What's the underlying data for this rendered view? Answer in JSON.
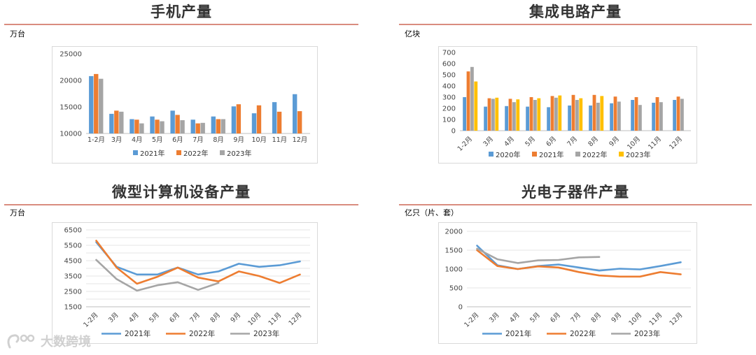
{
  "colors": {
    "blue": "#5b9bd5",
    "orange": "#ed7d31",
    "gray": "#a5a5a5",
    "yellow": "#ffc000",
    "title_rule": "#d98c7f"
  },
  "watermark": {
    "text": "大数跨境",
    "icon": "logo-mark-icon"
  },
  "panels": [
    {
      "title": "手机产量",
      "unit": "万台",
      "chart_data": {
        "type": "bar",
        "title": "手机产量",
        "ylabel": "万台",
        "ylim": [
          10000,
          25000
        ],
        "yticks": [
          10000,
          15000,
          20000,
          25000
        ],
        "categories": [
          "1-2月",
          "3月",
          "4月",
          "5月",
          "6月",
          "7月",
          "8月",
          "9月",
          "10月",
          "11月",
          "12月"
        ],
        "series": [
          {
            "name": "2021年",
            "color": "#5b9bd5",
            "values": [
              20800,
              13700,
              12700,
              13200,
              14300,
              12600,
              13200,
              15100,
              13800,
              15900,
              17400
            ]
          },
          {
            "name": "2022年",
            "color": "#ed7d31",
            "values": [
              21200,
              14300,
              12600,
              12600,
              13500,
              11900,
              12700,
              15500,
              15300,
              14100,
              14200
            ]
          },
          {
            "name": "2023年",
            "color": "#a5a5a5",
            "values": [
              20300,
              14100,
              11900,
              12300,
              12500,
              12000,
              12700,
              null,
              null,
              null,
              null
            ]
          }
        ],
        "legend": "bottom",
        "grid": false
      }
    },
    {
      "title": "集成电路产量",
      "unit": "亿块",
      "chart_data": {
        "type": "bar",
        "title": "集成电路产量",
        "ylabel": "亿块",
        "ylim": [
          0,
          700
        ],
        "yticks": [
          0,
          100,
          200,
          300,
          400,
          500,
          600,
          700
        ],
        "categories": [
          "1-2月",
          "3月",
          "4月",
          "5月",
          "6月",
          "7月",
          "8月",
          "9月",
          "10月",
          "11月",
          "12月"
        ],
        "series": [
          {
            "name": "2020年",
            "color": "#5b9bd5",
            "values": [
              300,
              215,
              220,
              215,
              210,
              225,
              225,
              245,
              275,
              250,
              275
            ]
          },
          {
            "name": "2021年",
            "color": "#ed7d31",
            "values": [
              530,
              290,
              285,
              300,
              310,
              320,
              320,
              305,
              300,
              300,
              305
            ]
          },
          {
            "name": "2022年",
            "color": "#a5a5a5",
            "values": [
              570,
              285,
              255,
              275,
              295,
              275,
              250,
              260,
              230,
              255,
              285
            ]
          },
          {
            "name": "2023年",
            "color": "#ffc000",
            "values": [
              440,
              295,
              280,
              290,
              315,
              290,
              310,
              null,
              null,
              null,
              null
            ]
          }
        ],
        "legend": "bottom",
        "grid": false
      }
    },
    {
      "title": "微型计算机设备产量",
      "unit": "万台",
      "chart_data": {
        "type": "line",
        "title": "微型计算机设备产量",
        "ylabel": "万台",
        "ylim": [
          1500,
          6500
        ],
        "yticks": [
          1500,
          2500,
          3500,
          4500,
          5500,
          6500
        ],
        "ytick_labels": [
          "1500",
          "2500",
          "3500",
          "4500",
          "5500",
          "6500"
        ],
        "ymid_ticks": [
          2000,
          3000,
          4000,
          5000,
          6000
        ],
        "categories": [
          "1-2月",
          "3月",
          "4月",
          "5月",
          "6月",
          "7月",
          "8月",
          "9月",
          "10月",
          "11月",
          "12月"
        ],
        "series": [
          {
            "name": "2021年",
            "color": "#5b9bd5",
            "values": [
              5700,
              4100,
              3600,
              3600,
              4050,
              3600,
              3800,
              4300,
              4100,
              4200,
              4450
            ]
          },
          {
            "name": "2022年",
            "color": "#ed7d31",
            "values": [
              5800,
              4050,
              3000,
              3450,
              4050,
              3400,
              3150,
              3800,
              3500,
              3050,
              3600
            ]
          },
          {
            "name": "2023年",
            "color": "#a5a5a5",
            "values": [
              4550,
              3300,
              2550,
              2900,
              3100,
              2600,
              3050,
              null,
              null,
              null,
              null
            ]
          }
        ],
        "legend": "bottom",
        "grid": true
      }
    },
    {
      "title": "光电子器件产量",
      "unit": "亿只（片、套）",
      "chart_data": {
        "type": "line",
        "title": "光电子器件产量",
        "ylabel": "亿只（片、套）",
        "ylim": [
          0,
          2000
        ],
        "yticks": [
          0,
          500,
          1000,
          1500,
          2000
        ],
        "categories": [
          "1-2月",
          "3月",
          "4月",
          "5月",
          "6月",
          "7月",
          "8月",
          "9月",
          "10月",
          "11月",
          "12月"
        ],
        "series": [
          {
            "name": "2021年",
            "color": "#5b9bd5",
            "values": [
              1620,
              1100,
              1000,
              1080,
              1120,
              1040,
              960,
              1010,
              990,
              1080,
              1180
            ]
          },
          {
            "name": "2022年",
            "color": "#ed7d31",
            "values": [
              1500,
              1080,
              1000,
              1070,
              1040,
              920,
              830,
              800,
              800,
              920,
              860
            ]
          },
          {
            "name": "2023年",
            "color": "#a5a5a5",
            "values": [
              1540,
              1260,
              1160,
              1230,
              1240,
              1310,
              1320,
              null,
              null,
              null,
              null
            ]
          }
        ],
        "legend": "bottom",
        "grid": true
      }
    }
  ]
}
